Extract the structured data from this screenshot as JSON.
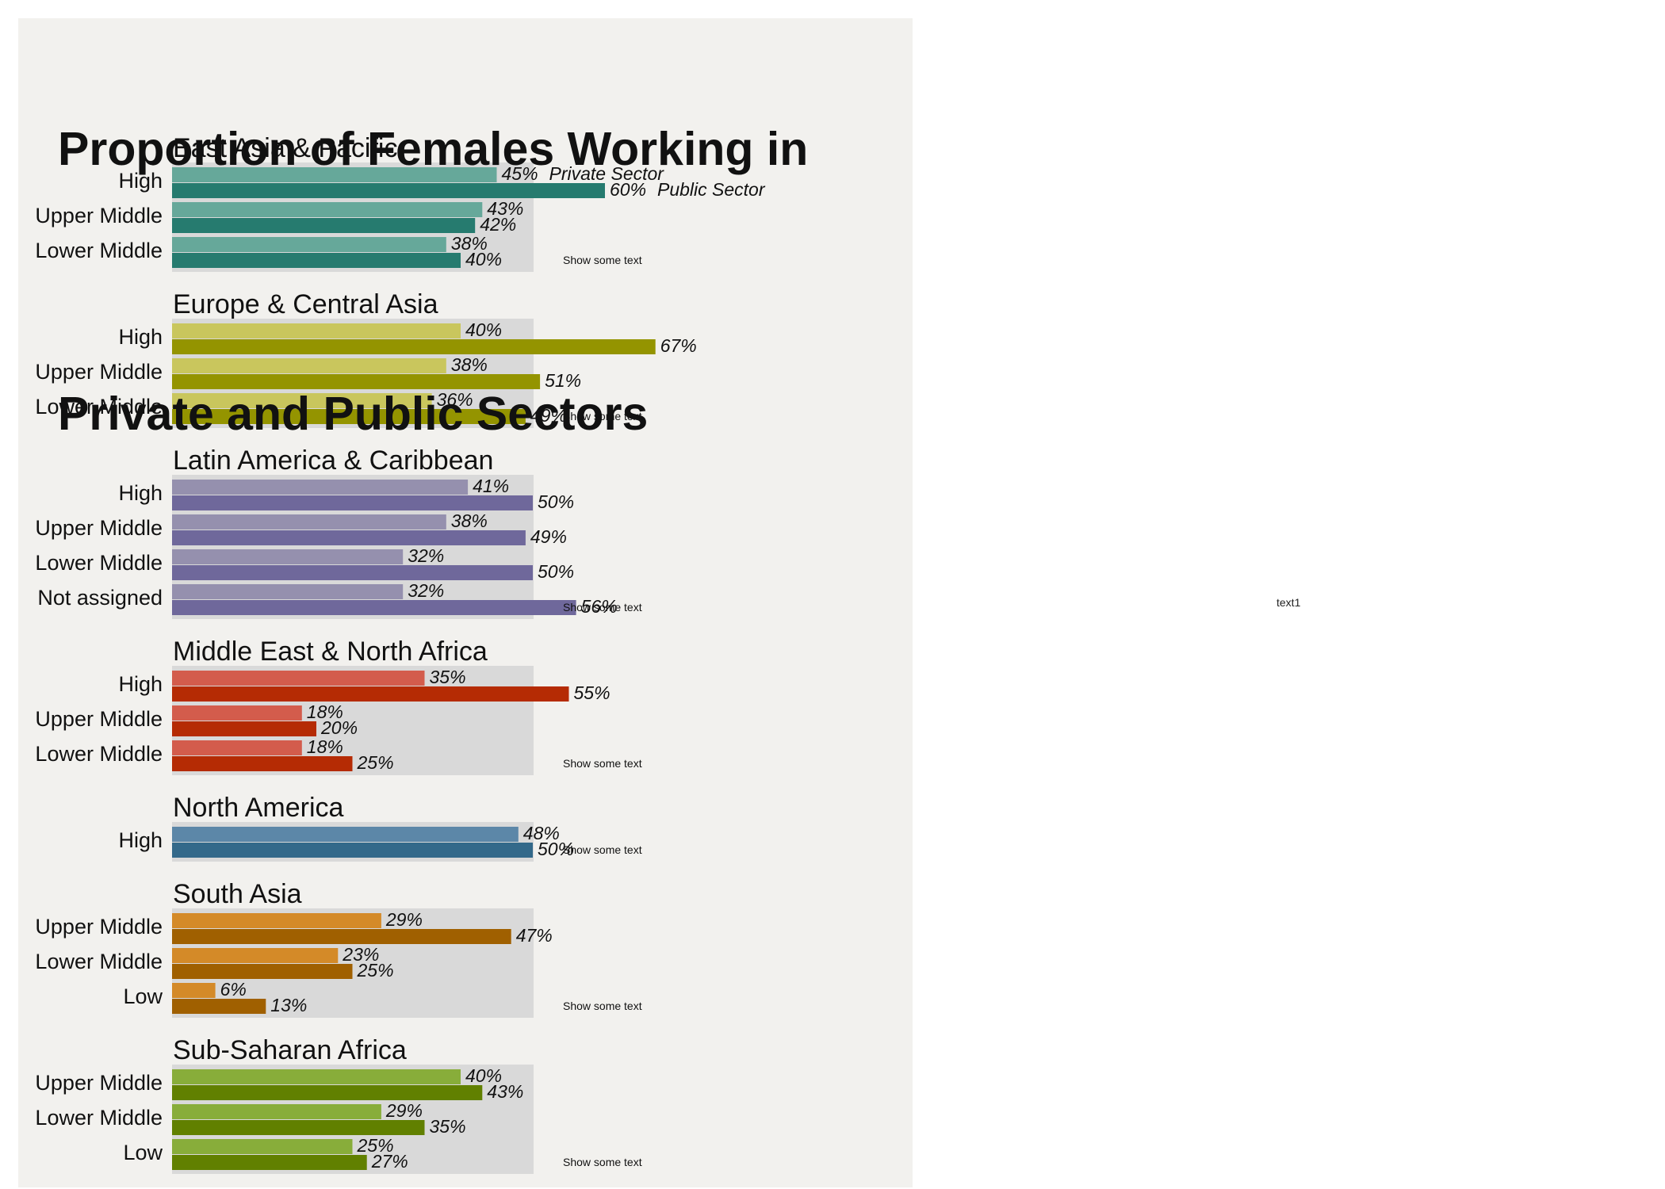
{
  "title_line1": "Proportion of Females Working in",
  "title_line2": "Private and Public Sectors",
  "side_note": "text1",
  "colors": {
    "panel_bg": "#f2f1ee",
    "group_bg": "#d9d9d9"
  },
  "chart_data": {
    "type": "bar",
    "orientation": "horizontal",
    "value_format": "percent",
    "xlim": [
      0,
      100
    ],
    "series_labels": [
      "Private Sector",
      "Public Sector"
    ],
    "groups": [
      {
        "name": "East Asia & Pacific",
        "colors": [
          "#66a89a",
          "#267b6f"
        ],
        "note": "Show some text",
        "categories": [
          "High",
          "Upper Middle",
          "Lower Middle"
        ],
        "private": [
          45,
          43,
          38
        ],
        "public": [
          60,
          42,
          40
        ]
      },
      {
        "name": "Europe & Central Asia",
        "colors": [
          "#c9c65d",
          "#949400"
        ],
        "note": "Show some text",
        "categories": [
          "High",
          "Upper Middle",
          "Lower Middle"
        ],
        "private": [
          40,
          38,
          36
        ],
        "public": [
          67,
          51,
          49
        ]
      },
      {
        "name": "Latin America & Caribbean",
        "colors": [
          "#9590ae",
          "#6f689b"
        ],
        "note": "Show some text",
        "categories": [
          "High",
          "Upper Middle",
          "Lower Middle",
          "Not assigned"
        ],
        "private": [
          41,
          38,
          32,
          32
        ],
        "public": [
          50,
          49,
          50,
          56
        ]
      },
      {
        "name": "Middle East & North Africa",
        "colors": [
          "#d35c4c",
          "#b52b04"
        ],
        "note": "Show some text",
        "categories": [
          "High",
          "Upper Middle",
          "Lower Middle"
        ],
        "private": [
          35,
          18,
          18
        ],
        "public": [
          55,
          20,
          25
        ]
      },
      {
        "name": "North America",
        "colors": [
          "#5c87a8",
          "#33698a"
        ],
        "note": "Show some text",
        "categories": [
          "High"
        ],
        "private": [
          48
        ],
        "public": [
          50
        ]
      },
      {
        "name": "South Asia",
        "colors": [
          "#d48a28",
          "#a06000"
        ],
        "note": "Show some text",
        "categories": [
          "Upper Middle",
          "Lower Middle",
          "Low"
        ],
        "private": [
          29,
          23,
          6
        ],
        "public": [
          47,
          25,
          13
        ]
      },
      {
        "name": "Sub-Saharan Africa",
        "colors": [
          "#88ad3a",
          "#618000"
        ],
        "note": "Show some text",
        "categories": [
          "Upper Middle",
          "Lower Middle",
          "Low"
        ],
        "private": [
          40,
          29,
          25
        ],
        "public": [
          43,
          35,
          27
        ]
      }
    ]
  }
}
